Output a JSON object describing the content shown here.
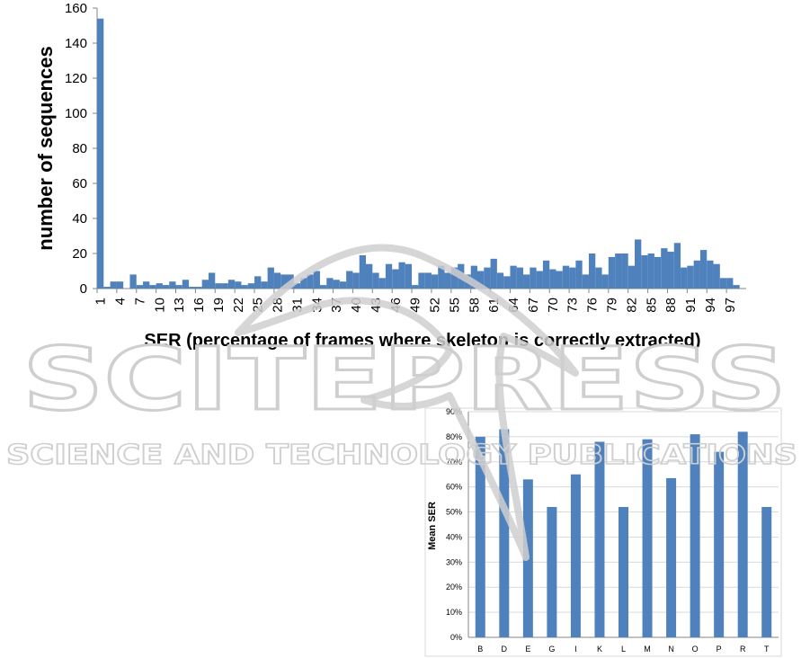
{
  "watermark": {
    "main": "SCITEPRESS",
    "sub": "SCIENCE AND TECHNOLOGY PUBLICATIONS"
  },
  "colors": {
    "bar": "#4f81bd",
    "axis": "#868686",
    "grid": "#d9d9d9",
    "watermark": "#cfcfcf"
  },
  "chart_data": [
    {
      "type": "bar",
      "xlabel": "SER (percentage of frames where skeleton is correctly extracted)",
      "ylabel": "number of sequences",
      "ylim": [
        0,
        160
      ],
      "yticks": [
        0,
        20,
        40,
        60,
        80,
        100,
        120,
        140,
        160
      ],
      "grid": false,
      "x": [
        1,
        2,
        3,
        4,
        5,
        6,
        7,
        8,
        9,
        10,
        11,
        12,
        13,
        14,
        15,
        16,
        17,
        18,
        19,
        20,
        21,
        22,
        23,
        24,
        25,
        26,
        27,
        28,
        29,
        30,
        31,
        32,
        33,
        34,
        35,
        36,
        37,
        38,
        39,
        40,
        41,
        42,
        43,
        44,
        45,
        46,
        47,
        48,
        49,
        50,
        51,
        52,
        53,
        54,
        55,
        56,
        57,
        58,
        59,
        60,
        61,
        62,
        63,
        64,
        65,
        66,
        67,
        68,
        69,
        70,
        71,
        72,
        73,
        74,
        75,
        76,
        77,
        78,
        79,
        80,
        81,
        82,
        83,
        84,
        85,
        86,
        87,
        88,
        89,
        90,
        91,
        92,
        93,
        94,
        95,
        96,
        97,
        98,
        99
      ],
      "xticks": [
        "1",
        "4",
        "7",
        "10",
        "13",
        "16",
        "19",
        "22",
        "25",
        "28",
        "31",
        "34",
        "37",
        "40",
        "43",
        "46",
        "49",
        "52",
        "55",
        "58",
        "61",
        "64",
        "67",
        "70",
        "73",
        "76",
        "79",
        "82",
        "85",
        "88",
        "91",
        "94",
        "97"
      ],
      "values": [
        154,
        1,
        4,
        4,
        0,
        8,
        2,
        4,
        2,
        3,
        2,
        4,
        2,
        5,
        1,
        1,
        5,
        9,
        3,
        3,
        5,
        4,
        2,
        3,
        7,
        4,
        12,
        9,
        8,
        8,
        3,
        6,
        8,
        10,
        2,
        6,
        5,
        4,
        10,
        9,
        19,
        14,
        9,
        6,
        14,
        11,
        15,
        14,
        2,
        9,
        9,
        8,
        13,
        9,
        12,
        14,
        8,
        13,
        10,
        12,
        17,
        9,
        7,
        13,
        12,
        8,
        12,
        10,
        16,
        11,
        10,
        13,
        12,
        16,
        8,
        20,
        12,
        8,
        18,
        20,
        20,
        13,
        28,
        19,
        20,
        18,
        23,
        21,
        26,
        12,
        13,
        16,
        22,
        16,
        14,
        6,
        6,
        2,
        0
      ]
    },
    {
      "type": "bar",
      "ylabel": "Mean SER",
      "ylim": [
        0,
        90
      ],
      "yticks": [
        "0%",
        "10%",
        "20%",
        "30%",
        "40%",
        "50%",
        "60%",
        "70%",
        "80%",
        "90%"
      ],
      "grid": true,
      "categories": [
        "B",
        "D",
        "E",
        "G",
        "I",
        "K",
        "L",
        "M",
        "N",
        "O",
        "P",
        "R",
        "T"
      ],
      "values": [
        80,
        83,
        63,
        52,
        65,
        78,
        52,
        79,
        63.5,
        81,
        74,
        82,
        52
      ]
    }
  ]
}
